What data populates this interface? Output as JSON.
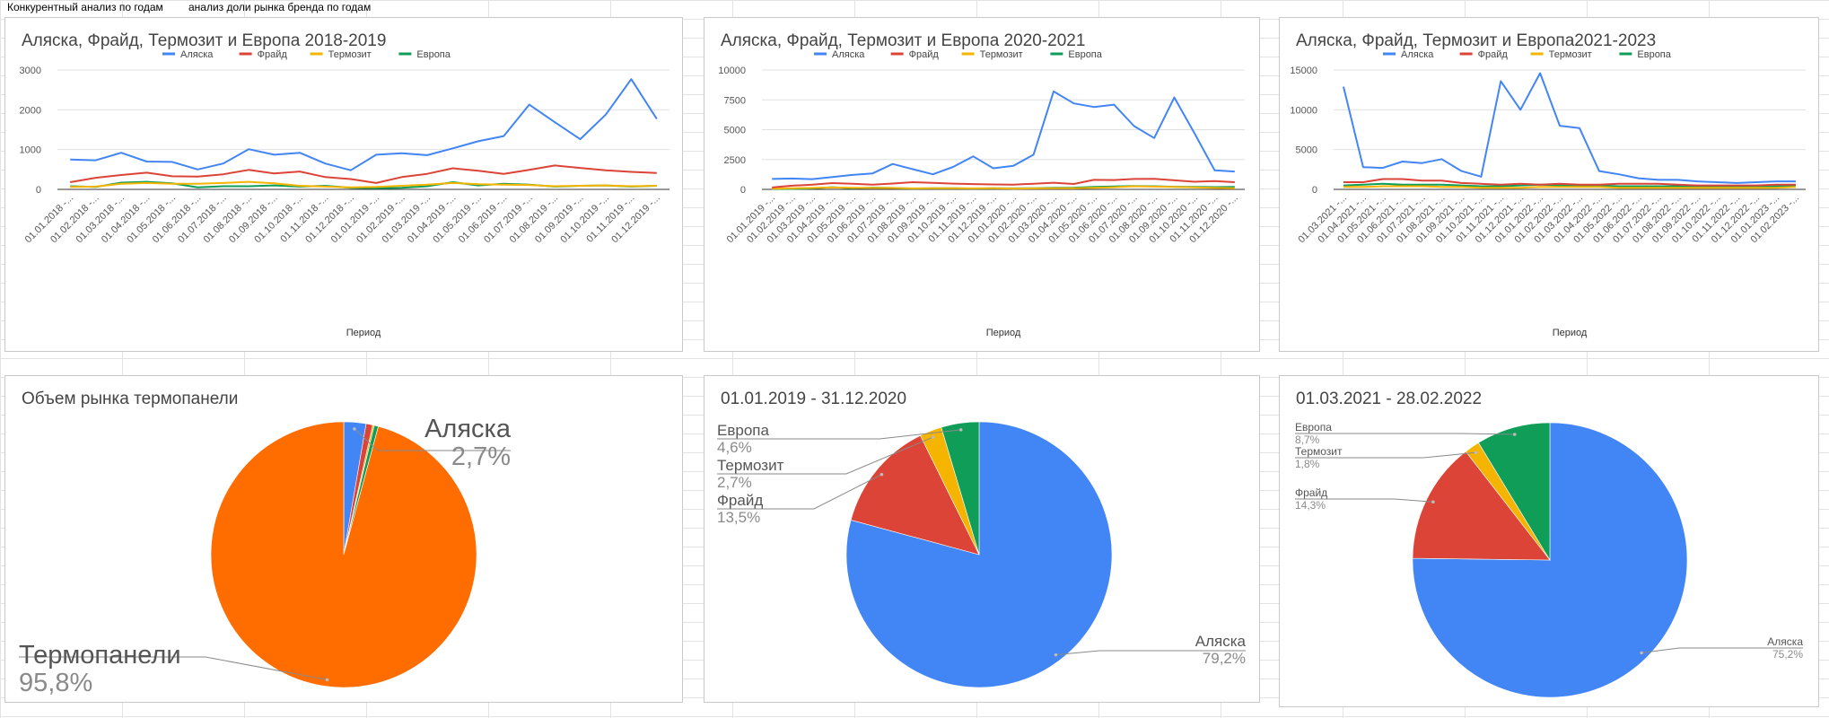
{
  "header": {
    "tabs": [
      {
        "label": "Конкурентный анализ  по годам"
      },
      {
        "label": "анализ доли рынка  бренда по годам"
      }
    ]
  },
  "colors": {
    "alaska": "#4285f4",
    "fraid": "#db4437",
    "termozit": "#f4b400",
    "evropa": "#0f9d58",
    "termopaneli": "#ff6d01"
  },
  "chart_data": [
    {
      "type": "line",
      "title": "Аляска, Фрайд, Термозит и Европа 2018-2019",
      "xlabel": "Период",
      "ylabel": "",
      "ylim": [
        0,
        3000
      ],
      "yticks": [
        "0",
        "1000",
        "2000",
        "3000"
      ],
      "legend": "top",
      "categories": [
        "01.01.2018 -...",
        "01.02.2018 -...",
        "01.03.2018 -...",
        "01.04.2018 -...",
        "01.05.2018 -...",
        "01.06.2018 -...",
        "01.07.2018 -...",
        "01.08.2018 -...",
        "01.09.2018 -...",
        "01.10.2018 -...",
        "01.11.2018 -...",
        "01.12.2018 -...",
        "01.01.2019 -...",
        "01.02.2019 -...",
        "01.03.2019 -...",
        "01.04.2019 -...",
        "01.05.2019 -...",
        "01.06.2019 -...",
        "01.07.2019 -...",
        "01.08.2019 -...",
        "01.09.2019 -...",
        "01.10.2019 -...",
        "01.11.2019 -...",
        "01.12.2019 -..."
      ],
      "series": [
        {
          "name": "Аляска",
          "values": [
            750,
            730,
            920,
            700,
            690,
            500,
            650,
            1010,
            870,
            920,
            650,
            480,
            870,
            910,
            860,
            1030,
            1210,
            1340,
            2130,
            1690,
            1260,
            1880,
            2770,
            1770
          ]
        },
        {
          "name": "Фрайд",
          "values": [
            180,
            290,
            360,
            420,
            330,
            320,
            380,
            490,
            400,
            450,
            310,
            260,
            160,
            310,
            390,
            530,
            470,
            390,
            490,
            600,
            540,
            480,
            440,
            410
          ]
        },
        {
          "name": "Термозит",
          "values": [
            60,
            70,
            140,
            160,
            140,
            140,
            160,
            190,
            150,
            90,
            70,
            50,
            60,
            90,
            120,
            160,
            130,
            120,
            110,
            80,
            90,
            100,
            80,
            90
          ]
        },
        {
          "name": "Европа",
          "values": [
            80,
            60,
            170,
            190,
            150,
            50,
            80,
            80,
            100,
            70,
            90,
            40,
            30,
            40,
            80,
            180,
            100,
            140,
            120,
            70,
            90,
            100,
            70,
            90
          ]
        }
      ]
    },
    {
      "type": "line",
      "title": "Аляска, Фрайд, Термозит и Европа 2020-2021",
      "xlabel": "Период",
      "ylabel": "",
      "ylim": [
        0,
        10000
      ],
      "yticks": [
        "0",
        "2500",
        "5000",
        "7500",
        "10000"
      ],
      "legend": "top",
      "categories": [
        "01.01.2019 -...",
        "01.02.2019 -...",
        "01.03.2019 -...",
        "01.04.2019 -...",
        "01.05.2019 -...",
        "01.06.2019 -...",
        "01.07.2019 -...",
        "01.08.2019 -...",
        "01.09.2019 -...",
        "01.10.2019 -...",
        "01.11.2019 -...",
        "01.12.2019 -...",
        "01.01.2020 -...",
        "01.02.2020 -...",
        "01.03.2020 -...",
        "01.04.2020 -...",
        "01.05.2020 -...",
        "01.06.2020 -...",
        "01.07.2020 -...",
        "01.08.2020 -...",
        "01.09.2020 -...",
        "01.10.2020 -...",
        "01.11.2020 -...",
        "01.12.2020 -..."
      ],
      "series": [
        {
          "name": "Аляска",
          "values": [
            870,
            910,
            860,
            1030,
            1210,
            1340,
            2130,
            1690,
            1260,
            1880,
            2770,
            1770,
            1980,
            2900,
            8200,
            7200,
            6900,
            7100,
            5300,
            4300,
            7700,
            4700,
            1600,
            1500
          ]
        },
        {
          "name": "Фрайд",
          "values": [
            160,
            310,
            390,
            530,
            470,
            390,
            490,
            600,
            540,
            480,
            440,
            410,
            400,
            470,
            560,
            450,
            800,
            780,
            870,
            880,
            760,
            640,
            690,
            600
          ]
        },
        {
          "name": "Термозит",
          "values": [
            60,
            90,
            120,
            160,
            130,
            120,
            110,
            80,
            90,
            100,
            80,
            90,
            70,
            80,
            90,
            100,
            130,
            180,
            260,
            230,
            200,
            170,
            120,
            100
          ]
        },
        {
          "name": "Европа",
          "values": [
            30,
            40,
            80,
            180,
            100,
            140,
            120,
            70,
            90,
            100,
            70,
            90,
            80,
            100,
            130,
            140,
            200,
            240,
            280,
            260,
            220,
            200,
            190,
            200
          ]
        }
      ]
    },
    {
      "type": "line",
      "title": "Аляска, Фрайд, Термозит и Европа2021-2023",
      "xlabel": "Период",
      "ylabel": "",
      "ylim": [
        0,
        15000
      ],
      "yticks": [
        "0",
        "5000",
        "10000",
        "15000"
      ],
      "legend": "top",
      "categories": [
        "01.03.2021 -...",
        "01.04.2021 -...",
        "01.05.2021 -...",
        "01.06.2021 -...",
        "01.07.2021 -...",
        "01.08.2021 -...",
        "01.09.2021 -...",
        "01.10.2021 -...",
        "01.11.2021 -...",
        "01.12.2021 -...",
        "01.01.2022 -...",
        "01.02.2022 -...",
        "01.03.2022 -...",
        "01.04.2022 -...",
        "01.05.2022 -...",
        "01.06.2022 -...",
        "01.07.2022 -...",
        "01.08.2022 -...",
        "01.09.2022 -...",
        "01.10.2022 -...",
        "01.11.2022 -...",
        "01.12.2022 -...",
        "01.01.2023 -...",
        "01.02.2023 -..."
      ],
      "series": [
        {
          "name": "Аляска",
          "values": [
            12900,
            2800,
            2700,
            3500,
            3300,
            3800,
            2300,
            1600,
            13600,
            10000,
            14600,
            8000,
            7700,
            2300,
            1900,
            1400,
            1200,
            1200,
            1000,
            900,
            800,
            900,
            1000,
            1000
          ]
        },
        {
          "name": "Фрайд",
          "values": [
            900,
            900,
            1300,
            1300,
            1100,
            1100,
            800,
            700,
            600,
            700,
            600,
            700,
            600,
            600,
            700,
            700,
            700,
            600,
            500,
            500,
            500,
            500,
            600,
            600
          ]
        },
        {
          "name": "Термозит",
          "values": [
            300,
            300,
            400,
            400,
            400,
            300,
            300,
            200,
            200,
            200,
            300,
            300,
            300,
            300,
            200,
            200,
            200,
            200,
            200,
            200,
            200,
            200,
            200,
            300
          ]
        },
        {
          "name": "Европа",
          "values": [
            500,
            600,
            700,
            600,
            600,
            600,
            500,
            400,
            400,
            500,
            600,
            500,
            500,
            500,
            400,
            400,
            400,
            400,
            400,
            300,
            300,
            300,
            400,
            400
          ]
        }
      ]
    },
    {
      "type": "pie",
      "title": "Объем рынка термопанели",
      "slices": [
        {
          "name": "Аляска",
          "value": 2.7,
          "label": "2,7%",
          "color": "#4285f4"
        },
        {
          "name": "Фрайд",
          "value": 0.8,
          "label": "",
          "color": "#db4437"
        },
        {
          "name": "Термозит",
          "value": 0.2,
          "label": "",
          "color": "#f4b400"
        },
        {
          "name": "Европа",
          "value": 0.5,
          "label": "",
          "color": "#0f9d58"
        },
        {
          "name": "Термопанели",
          "value": 95.8,
          "label": "95,8%",
          "color": "#ff6d01"
        }
      ]
    },
    {
      "type": "pie",
      "title": "01.01.2019 - 31.12.2020",
      "slices": [
        {
          "name": "Аляска",
          "value": 79.2,
          "label": "79,2%",
          "color": "#4285f4"
        },
        {
          "name": "Фрайд",
          "value": 13.5,
          "label": "13,5%",
          "color": "#db4437"
        },
        {
          "name": "Термозит",
          "value": 2.7,
          "label": "2,7%",
          "color": "#f4b400"
        },
        {
          "name": "Европа",
          "value": 4.6,
          "label": "4,6%",
          "color": "#0f9d58"
        }
      ]
    },
    {
      "type": "pie",
      "title": "01.03.2021 - 28.02.2022",
      "slices": [
        {
          "name": "Аляска",
          "value": 75.2,
          "label": "75,2%",
          "color": "#4285f4"
        },
        {
          "name": "Фрайд",
          "value": 14.3,
          "label": "14,3%",
          "color": "#db4437"
        },
        {
          "name": "Термозит",
          "value": 1.8,
          "label": "1,8%",
          "color": "#f4b400"
        },
        {
          "name": "Европа",
          "value": 8.7,
          "label": "8,7%",
          "color": "#0f9d58"
        }
      ]
    }
  ]
}
